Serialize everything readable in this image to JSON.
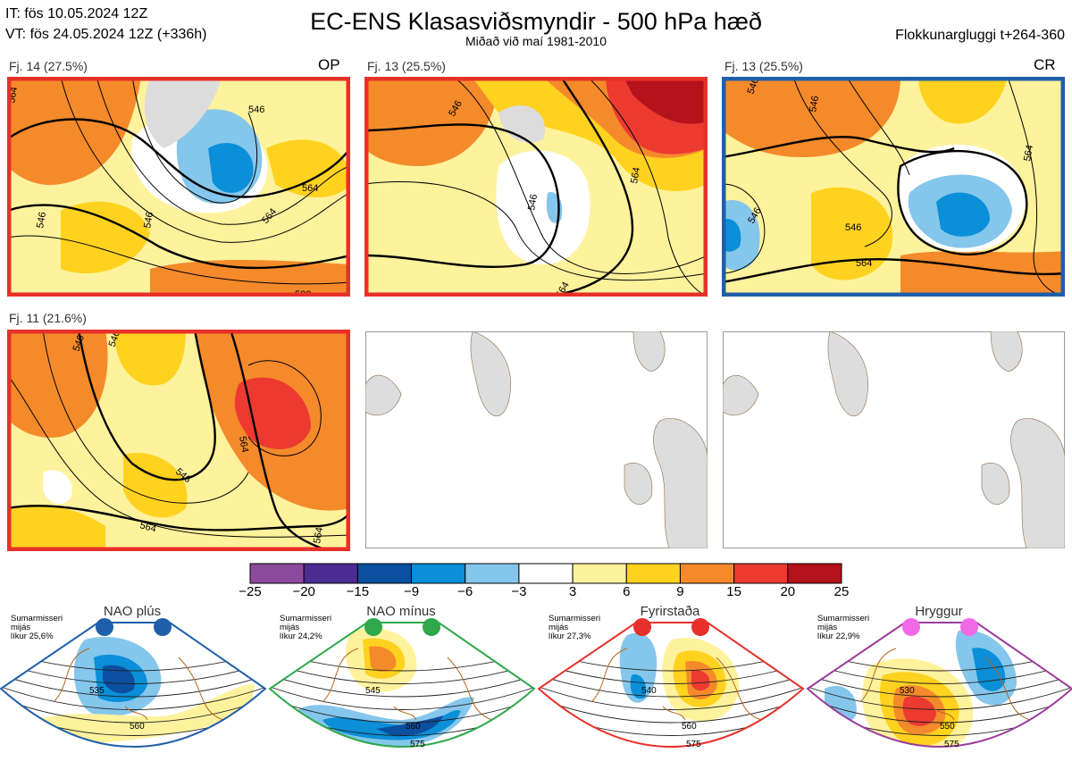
{
  "header": {
    "it_line": "IT: fös 10.05.2024 12Z",
    "vt_line": "VT: fös 24.05.2024 12Z  (+336h)",
    "title": "EC-ENS Klasasviðsmyndir - 500 hPa hæð",
    "subtitle": "Miðað við maí 1981-2010",
    "window": "Flokkunargluggi t+264-360"
  },
  "panels": [
    {
      "label": "Fj. 14 (27.5%)",
      "tag": "OP",
      "frame_color": "#e8302a",
      "contour_labels": [
        "546",
        "546",
        "564",
        "564",
        "564",
        "546",
        "582"
      ]
    },
    {
      "label": "Fj. 13 (25.5%)",
      "tag": "",
      "frame_color": "#e8302a",
      "contour_labels": [
        "546",
        "546",
        "564",
        "564"
      ]
    },
    {
      "label": "Fj. 13 (25.5%)",
      "tag": "CR",
      "frame_color": "#1f5faa",
      "contour_labels": [
        "546",
        "546",
        "564",
        "546",
        "564",
        "546"
      ]
    },
    {
      "label": "Fj. 11 (21.6%)",
      "tag": "",
      "frame_color": "#e8302a",
      "contour_labels": [
        "546",
        "546",
        "564",
        "546",
        "564",
        "564"
      ]
    },
    {
      "label": "",
      "tag": "",
      "frame_color": "#999999",
      "contour_labels": []
    },
    {
      "label": "",
      "tag": "",
      "frame_color": "#999999",
      "contour_labels": []
    }
  ],
  "colorbar": {
    "ticks": [
      "−25",
      "−20",
      "−15",
      "−9",
      "−6",
      "−3",
      "3",
      "6",
      "9",
      "15",
      "20",
      "25"
    ],
    "colors": [
      "#8c4a9c",
      "#4b2d92",
      "#0b4fa0",
      "#0a8fd8",
      "#85c6ec",
      "#ffffff",
      "#fff29c",
      "#ffd21f",
      "#f58a2b",
      "#ec3a31",
      "#b5131b"
    ]
  },
  "regimes": [
    {
      "name": "NAO plús",
      "meta": [
        "Sumarmisseri",
        "mijás",
        "líkur 25,6%"
      ],
      "color": "#1f5faa",
      "contour_labels": [
        "535",
        "560"
      ]
    },
    {
      "name": "NAO mínus",
      "meta": [
        "Sumarmisseri",
        "mijás",
        "líkur 24,2%"
      ],
      "color": "#2ea84a",
      "contour_labels": [
        "545",
        "560",
        "575"
      ]
    },
    {
      "name": "Fyrirstaða",
      "meta": [
        "Sumarmisseri",
        "mijás",
        "líkur 27,3%"
      ],
      "color": "#e8302a",
      "contour_labels": [
        "540",
        "560",
        "575"
      ]
    },
    {
      "name": "Hryggur",
      "meta": [
        "Sumarmisseri",
        "mijás",
        "líkur 22,9%"
      ],
      "color": "#9b3c9b",
      "contour_labels": [
        "530",
        "550",
        "575"
      ]
    }
  ]
}
